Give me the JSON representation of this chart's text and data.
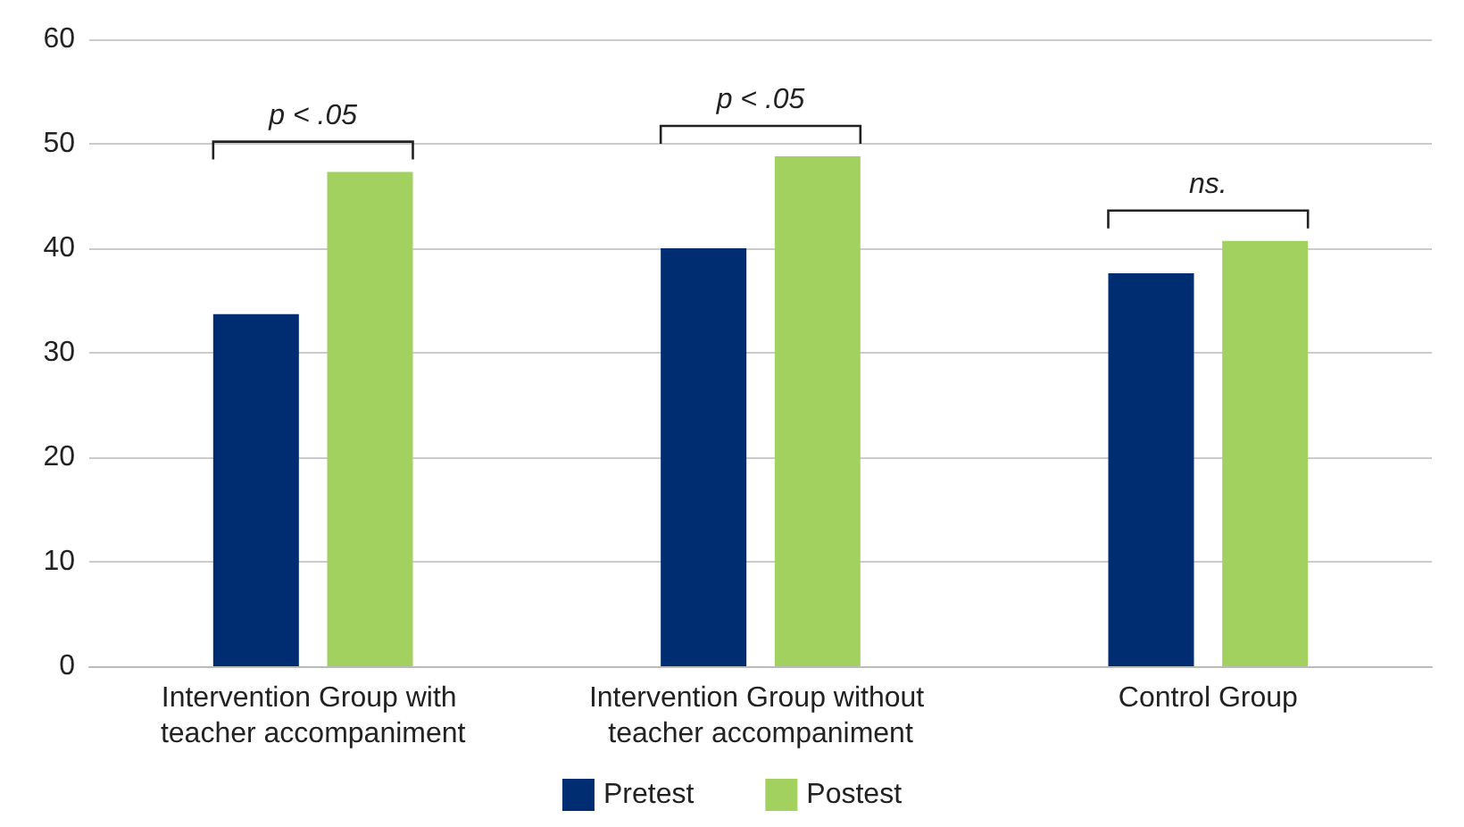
{
  "chart_data": {
    "type": "bar",
    "categories": [
      "Intervention Group with teacher accompaniment",
      "Intervention Group without teacher accompaniment",
      "Control Group"
    ],
    "series": [
      {
        "name": "Pretest",
        "color": "#002d72",
        "values": [
          33.7,
          40.0,
          37.6
        ]
      },
      {
        "name": "Postest",
        "color": "#a2d160",
        "values": [
          47.3,
          48.8,
          40.7
        ]
      }
    ],
    "ylim": [
      0,
      60
    ],
    "yticks": [
      0,
      10,
      20,
      30,
      40,
      50,
      60
    ],
    "grid": "y",
    "legend": "bottom",
    "annotations": [
      "p < .05",
      "p < .05",
      "ns."
    ]
  }
}
